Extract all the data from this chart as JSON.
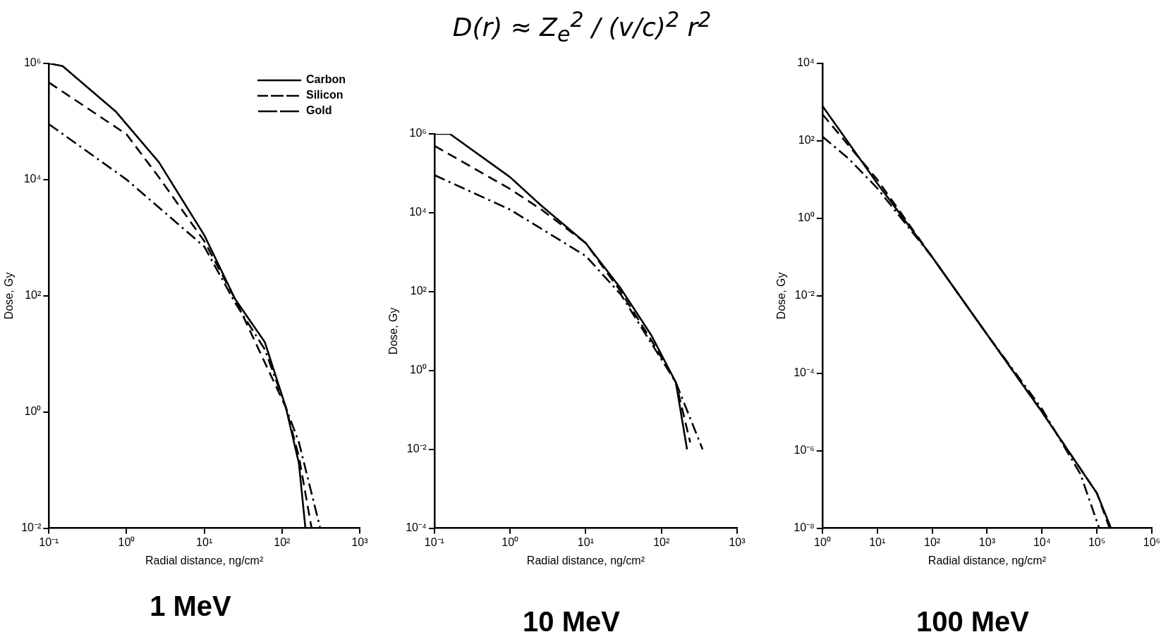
{
  "chart_data": [
    {
      "type": "line",
      "title": "1 MeV",
      "xlabel": "Radial distance, ng/cm²",
      "ylabel": "Dose, Gy",
      "log": "xy",
      "legend": "top right",
      "xlim": [
        0.1,
        1000
      ],
      "ylim": [
        0.01,
        1000000
      ],
      "xticks": [
        {
          "value": 0.1,
          "label": "10⁻¹"
        },
        {
          "value": 1,
          "label": "10⁰"
        },
        {
          "value": 10,
          "label": "10¹"
        },
        {
          "value": 100,
          "label": "10²"
        },
        {
          "value": 1000,
          "label": "10³"
        }
      ],
      "yticks": [
        {
          "value": 0.01,
          "label": "10⁻²"
        },
        {
          "value": 1,
          "label": "10⁰"
        },
        {
          "value": 100,
          "label": "10²"
        },
        {
          "value": 10000,
          "label": "10⁴"
        },
        {
          "value": 1000000,
          "label": "10⁶"
        }
      ],
      "series": [
        {
          "name": "Carbon",
          "color": "#000000",
          "line_style": "solid",
          "x": [
            0.1,
            0.15,
            0.72,
            2.6,
            10,
            25,
            60,
            112,
            165,
            200
          ],
          "values": [
            1000000,
            900000,
            150000,
            20000,
            1100,
            87,
            16,
            1.2,
            0.13,
            0.01
          ]
        },
        {
          "name": "Silicon",
          "color": "#000000",
          "line_style": "dashed",
          "x": [
            0.1,
            1,
            2.6,
            10,
            25,
            112,
            165,
            240
          ],
          "values": [
            470000,
            60000,
            11000,
            870,
            87,
            1.2,
            0.17,
            0.01
          ]
        },
        {
          "name": "Gold",
          "color": "#000000",
          "line_style": "dashdot",
          "x": [
            0.1,
            1,
            10,
            25,
            60,
            112,
            165,
            310
          ],
          "values": [
            90000,
            10000,
            700,
            75,
            12,
            1.2,
            0.3,
            0.01
          ]
        }
      ]
    },
    {
      "type": "line",
      "title": "10 MeV",
      "xlabel": "Radial distance, ng/cm²",
      "ylabel": "Dose, Gy",
      "log": "xy",
      "xlim": [
        0.1,
        1000
      ],
      "ylim": [
        0.0001,
        1000000
      ],
      "annotations": [
        "D(r) ≈ Z$_{e}$$^{2}$ / (v/c)$^{2}$ r$^{2}$"
      ],
      "xticks": [
        {
          "value": 0.1,
          "label": "10⁻¹"
        },
        {
          "value": 1,
          "label": "10⁰"
        },
        {
          "value": 10,
          "label": "10¹"
        },
        {
          "value": 100,
          "label": "10²"
        },
        {
          "value": 1000,
          "label": "10³"
        }
      ],
      "yticks": [
        {
          "value": 0.0001,
          "label": "10⁻⁴"
        },
        {
          "value": 0.01,
          "label": "10⁻²"
        },
        {
          "value": 1,
          "label": "10⁰"
        },
        {
          "value": 100,
          "label": "10²"
        },
        {
          "value": 10000,
          "label": "10⁴"
        },
        {
          "value": 1000000,
          "label": "10⁶"
        }
      ],
      "series": [
        {
          "color": "#000000",
          "line_style": "solid",
          "x": [
            0.1,
            0.16,
            1,
            2.6,
            10,
            29,
            73,
            155,
            218
          ],
          "values": [
            1000000,
            1000000,
            80000,
            15000,
            1700,
            120,
            8,
            0.5,
            0.01
          ]
        },
        {
          "color": "#000000",
          "line_style": "dashed",
          "x": [
            0.1,
            1,
            2.6,
            10,
            29,
            73,
            155,
            240
          ],
          "values": [
            500000,
            40000,
            12000,
            1700,
            100,
            6,
            0.5,
            0.015
          ]
        },
        {
          "color": "#000000",
          "line_style": "dashdot",
          "x": [
            0.1,
            1,
            10,
            29,
            73,
            155,
            350
          ],
          "values": [
            90000,
            12000,
            800,
            85,
            5,
            0.5,
            0.01
          ]
        }
      ]
    },
    {
      "type": "line",
      "title": "100 MeV",
      "xlabel": "Radial distance, ng/cm²",
      "ylabel": "Dose, Gy",
      "log": "xy",
      "xlim": [
        1,
        1000000
      ],
      "ylim": [
        1e-08,
        10000
      ],
      "xticks": [
        {
          "value": 1,
          "label": "10⁰"
        },
        {
          "value": 10,
          "label": "10¹"
        },
        {
          "value": 100,
          "label": "10²"
        },
        {
          "value": 1000,
          "label": "10³"
        },
        {
          "value": 10000,
          "label": "10⁴"
        },
        {
          "value": 100000,
          "label": "10⁵"
        },
        {
          "value": 1000000,
          "label": "10⁶"
        }
      ],
      "yticks": [
        {
          "value": 1e-08,
          "label": "10⁻⁸"
        },
        {
          "value": 1e-06,
          "label": "10⁻⁶"
        },
        {
          "value": 0.0001,
          "label": "10⁻⁴"
        },
        {
          "value": 0.01,
          "label": "10⁻²"
        },
        {
          "value": 1,
          "label": "10⁰"
        },
        {
          "value": 100,
          "label": "10²"
        },
        {
          "value": 10000,
          "label": "10⁴"
        }
      ],
      "series": [
        {
          "color": "#000000",
          "line_style": "solid",
          "x": [
            1,
            10,
            100,
            1000,
            10000,
            100000,
            180000
          ],
          "values": [
            800,
            8,
            0.1,
            0.001,
            1e-05,
            8e-08,
            1e-08
          ]
        },
        {
          "color": "#000000",
          "line_style": "dashed",
          "x": [
            1,
            10,
            100,
            1000,
            10000,
            100000,
            170000
          ],
          "values": [
            490,
            10,
            0.1,
            0.001,
            1e-05,
            8e-08,
            1e-08
          ]
        },
        {
          "color": "#000000",
          "line_style": "dashdot",
          "x": [
            1,
            3,
            10,
            100,
            1000,
            10000,
            50000,
            110000
          ],
          "values": [
            130,
            35,
            6,
            0.1,
            0.001,
            1.2e-05,
            2.5e-07,
            1e-08
          ]
        }
      ]
    }
  ]
}
